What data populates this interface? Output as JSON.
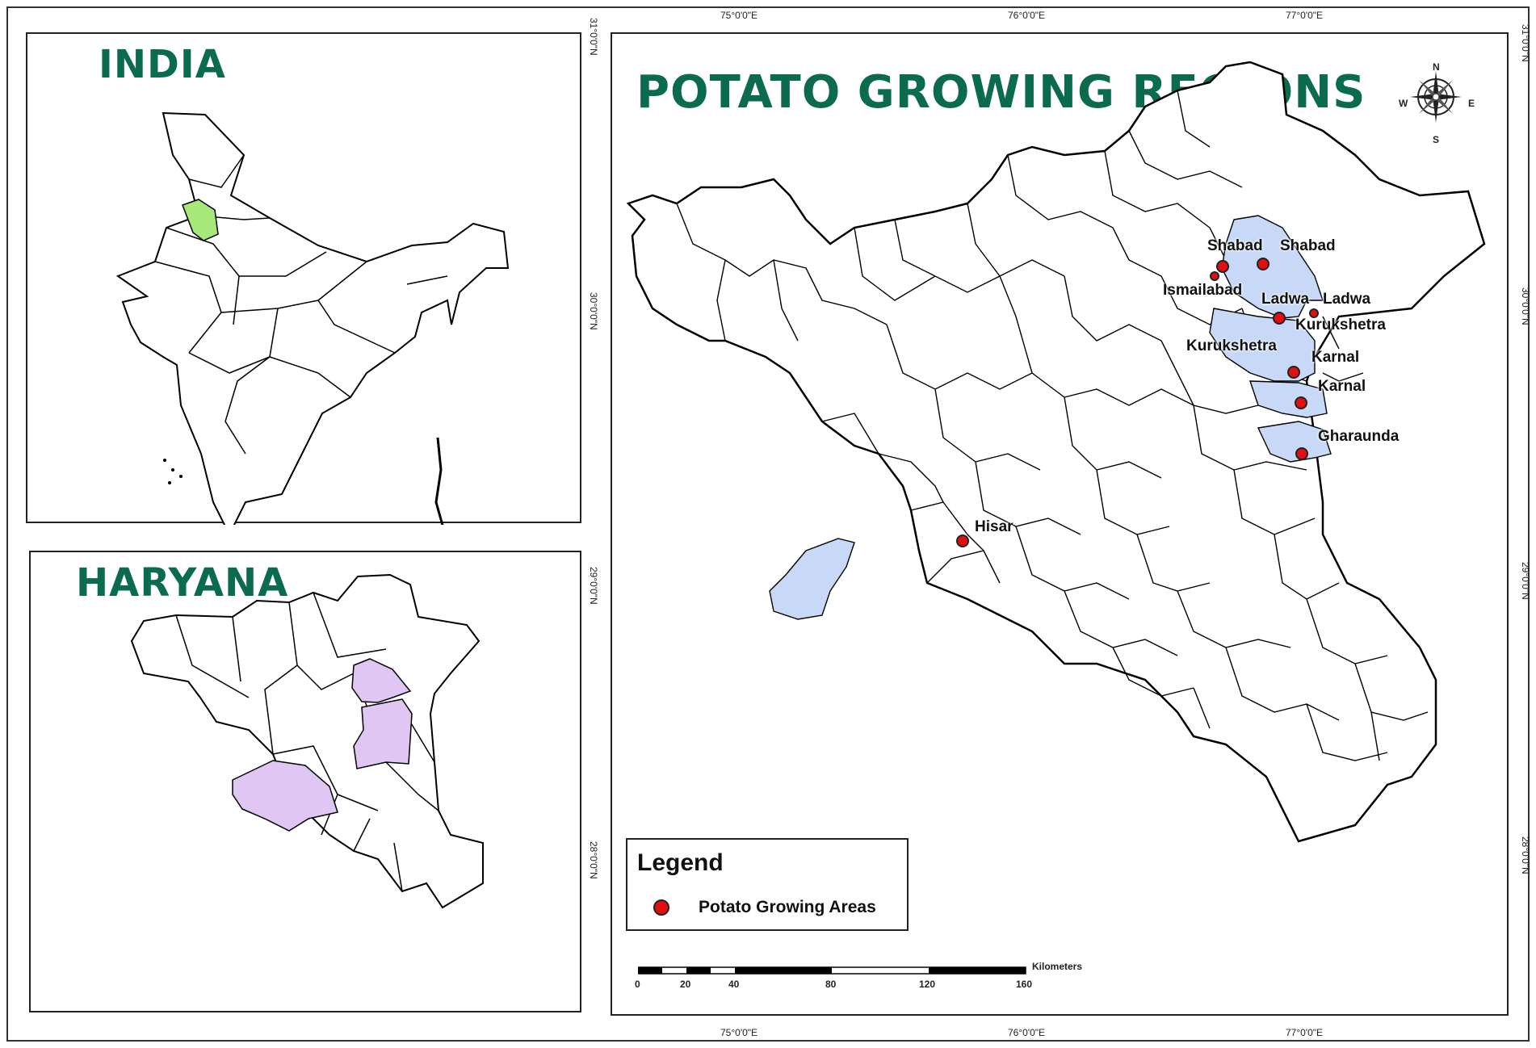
{
  "insets": {
    "india_title": "INDIA",
    "haryana_title": "HARYANA",
    "india_highlight_color": "#a6e87a",
    "haryana_highlight_color": "#e0c6f3"
  },
  "main": {
    "title": "POTATO GROWING REGIONS",
    "highlight_color": "#c7d9f6",
    "top_coords": [
      "75°0'0\"E",
      "76°0'0\"E",
      "77°0'0\"E"
    ],
    "bottom_coords": [
      "75°0'0\"E",
      "76°0'0\"E",
      "77°0'0\"E"
    ],
    "left_coords": [
      "31°0'0\"N",
      "30°0'0\"N",
      "29°0'0\"N",
      "28°0'0\"N"
    ],
    "right_coords": [
      "31°0'0\"N",
      "30°0'0\"N",
      "29°0'0\"N",
      "28°0'0\"N"
    ],
    "places": [
      {
        "label": "Shabad"
      },
      {
        "label": "Shabad"
      },
      {
        "label": "Ismailabad"
      },
      {
        "label": "Ladwa"
      },
      {
        "label": "Ladwa"
      },
      {
        "label": "Kurukshetra"
      },
      {
        "label": "Kurukshetra"
      },
      {
        "label": "Karnal"
      },
      {
        "label": "Karnal"
      },
      {
        "label": "Gharaunda"
      },
      {
        "label": "Hisar"
      }
    ]
  },
  "compass": {
    "n": "N",
    "s": "S",
    "e": "E",
    "w": "W"
  },
  "legend": {
    "title": "Legend",
    "items": [
      {
        "label": "Potato Growing Areas",
        "color": "#e01010"
      }
    ]
  },
  "scale_bar": {
    "unit": "Kilometers",
    "ticks": [
      "0",
      "20",
      "40",
      "80",
      "120",
      "160"
    ]
  }
}
